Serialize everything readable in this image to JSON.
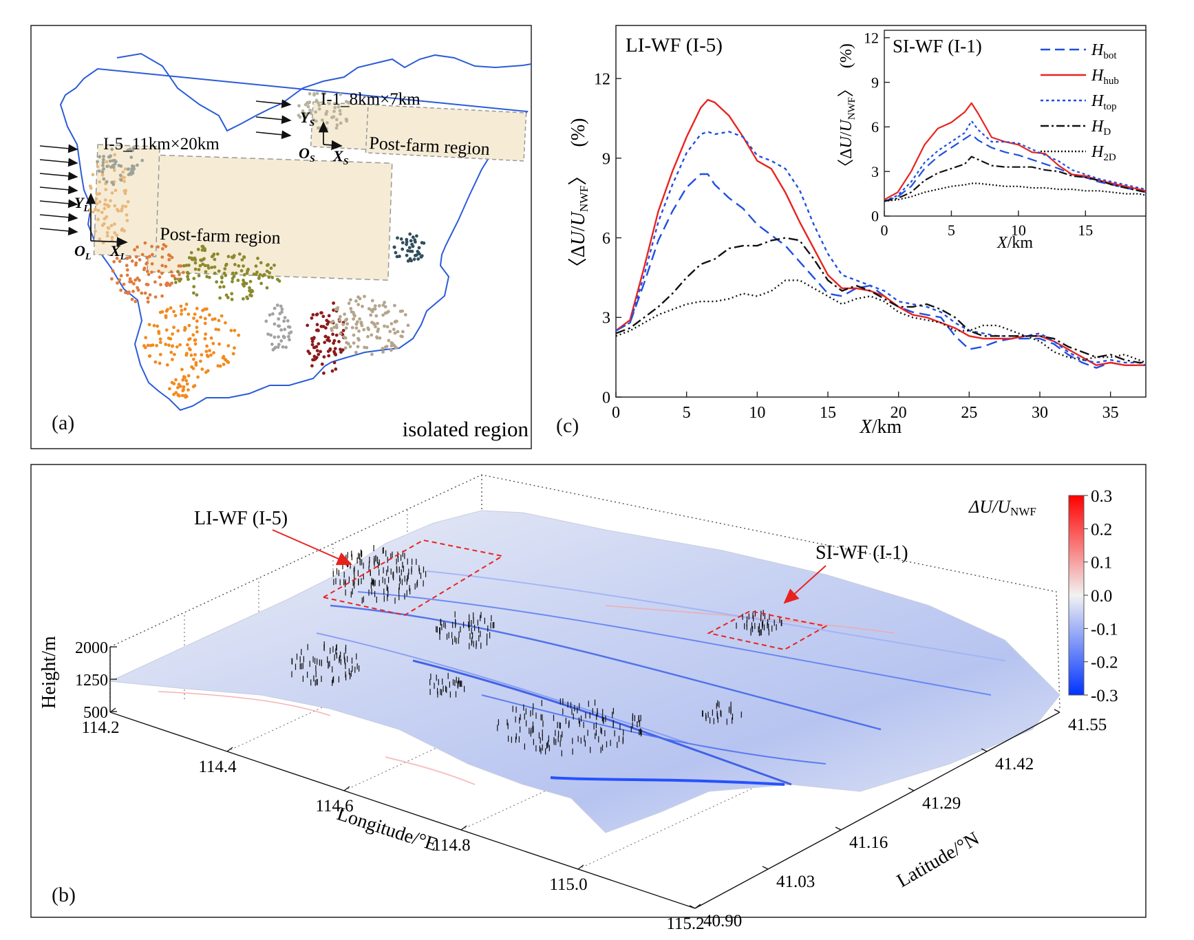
{
  "panel_a": {
    "label": "(a)",
    "corner_text": "isolated region",
    "small_box_title": "I-1_8km×7km",
    "large_box_title": "I-5_11km×20km",
    "post_farm_small": "Post-farm region",
    "post_farm_large": "Post-farm region",
    "axis_s": {
      "o": "O",
      "o_sub": "S",
      "x": "X",
      "x_sub": "S",
      "y": "Y",
      "y_sub": "S"
    },
    "axis_l": {
      "o": "O",
      "o_sub": "L",
      "x": "X",
      "x_sub": "L",
      "y": "Y",
      "y_sub": "L"
    },
    "colors": {
      "border": "#2a5bd7",
      "box_fill": "#f6ecd6",
      "box_stroke": "#999999",
      "arrow": "#111111"
    },
    "clusters": [
      {
        "color": "#b8b29c"
      },
      {
        "color": "#e9b87a"
      },
      {
        "color": "#9da39a"
      },
      {
        "color": "#e07b3a"
      },
      {
        "color": "#f28a1e"
      },
      {
        "color": "#8a8a2c"
      },
      {
        "color": "#a2a2a2"
      },
      {
        "color": "#8c1b1b"
      },
      {
        "color": "#b4a58c"
      },
      {
        "color": "#2f4e5c"
      }
    ]
  },
  "panel_b": {
    "label": "(b)",
    "colorbar_title": "ΔU/U",
    "colorbar_title_sub": "NWF",
    "colorbar_ticks": [
      "0.3",
      "0.2",
      "0.1",
      "0.0",
      "-0.1",
      "-0.2",
      "-0.3"
    ],
    "colorbar_colors": {
      "max": "#ff0000",
      "mid": "#f2f2f2",
      "min": "#0033ff"
    },
    "ann_li": "LI-WF (I-5)",
    "ann_si": "SI-WF (I-1)",
    "height_label": "Height/m",
    "height_ticks": [
      "2000",
      "1250",
      "500"
    ],
    "lon_label": "Longitude/°E",
    "lon_ticks": [
      "114.2",
      "114.4",
      "114.6",
      "114.8",
      "115.0",
      "115.2"
    ],
    "lat_label": "Latitude/°N",
    "lat_ticks": [
      "40.90",
      "41.03",
      "41.16",
      "41.29",
      "41.42",
      "41.55"
    ]
  },
  "chart_data": [
    {
      "type": "line",
      "label": "(c)",
      "title": "LI-WF (I-5)",
      "xlabel": "X",
      "xlabel_unit": "/km",
      "ylabel_open": "〈Δ",
      "ylabel_u": "U",
      "ylabel_slash": "/",
      "ylabel_u2": "U",
      "ylabel_sub": "NWF",
      "ylabel_close": "〉",
      "ylabel_pct": "(%)",
      "xlim": [
        0,
        37.5
      ],
      "ylim": [
        0,
        14
      ],
      "xticks": [
        0,
        5,
        10,
        15,
        20,
        25,
        30,
        35
      ],
      "yticks": [
        0,
        3,
        6,
        9,
        12
      ],
      "x": [
        0,
        1,
        2,
        3,
        4,
        5,
        6,
        6.5,
        7,
        8,
        9,
        10,
        11,
        12,
        13,
        14,
        15,
        16,
        17,
        18,
        19,
        20,
        21,
        22,
        23,
        24,
        25,
        26,
        27,
        28,
        29,
        30,
        31,
        32,
        33,
        34,
        35,
        36,
        37,
        37.5
      ],
      "series": [
        {
          "name": "H",
          "sub": "bot",
          "color": "#1f4fe0",
          "dash": "16,8",
          "values": [
            2.5,
            2.8,
            4.3,
            5.9,
            7.0,
            7.9,
            8.4,
            8.4,
            8.0,
            7.5,
            7.1,
            6.5,
            6.1,
            5.7,
            5.1,
            4.5,
            3.9,
            3.8,
            4.1,
            4.2,
            3.8,
            3.4,
            3.2,
            3.1,
            3.0,
            2.3,
            1.8,
            1.9,
            2.1,
            2.2,
            2.2,
            2.2,
            2.0,
            1.6,
            1.3,
            1.1,
            1.3,
            1.2,
            1.2,
            1.2
          ]
        },
        {
          "name": "H",
          "sub": "hub",
          "color": "#e8231f",
          "dash": "",
          "values": [
            2.5,
            2.9,
            4.9,
            7.0,
            8.5,
            9.8,
            10.9,
            11.2,
            11.1,
            10.6,
            9.8,
            8.9,
            8.6,
            7.7,
            6.6,
            5.6,
            4.6,
            4.1,
            4.1,
            4.0,
            3.8,
            3.4,
            3.1,
            3.0,
            2.8,
            2.6,
            2.3,
            2.2,
            2.2,
            2.2,
            2.3,
            2.3,
            2.1,
            1.8,
            1.5,
            1.2,
            1.3,
            1.2,
            1.2,
            1.2
          ]
        },
        {
          "name": "H",
          "sub": "top",
          "color": "#1f4fe0",
          "dash": "5,5",
          "values": [
            2.5,
            2.8,
            4.6,
            6.6,
            8.0,
            9.2,
            9.9,
            10.0,
            9.9,
            10.0,
            9.8,
            9.1,
            8.9,
            8.6,
            7.8,
            6.5,
            5.4,
            4.6,
            4.4,
            4.2,
            4.0,
            3.6,
            3.5,
            3.4,
            3.2,
            2.8,
            2.5,
            2.4,
            2.3,
            2.3,
            2.3,
            2.4,
            2.1,
            1.7,
            1.4,
            1.3,
            1.4,
            1.3,
            1.3,
            1.2
          ]
        },
        {
          "name": "H",
          "sub": "D",
          "color": "#111111",
          "dash": "14,5,3,5",
          "values": [
            2.4,
            2.6,
            3.0,
            3.4,
            3.9,
            4.5,
            5.0,
            5.1,
            5.2,
            5.6,
            5.7,
            5.7,
            5.9,
            6.0,
            5.9,
            5.2,
            4.4,
            4.0,
            4.2,
            4.0,
            3.7,
            3.4,
            3.4,
            3.5,
            3.3,
            3.0,
            2.5,
            2.3,
            2.3,
            2.3,
            2.3,
            2.3,
            2.2,
            1.9,
            1.7,
            1.5,
            1.6,
            1.4,
            1.3,
            1.3
          ]
        },
        {
          "name": "H",
          "sub": "2D",
          "color": "#111111",
          "dash": "2,4",
          "values": [
            2.3,
            2.5,
            2.8,
            3.1,
            3.3,
            3.5,
            3.6,
            3.6,
            3.6,
            3.7,
            3.9,
            3.8,
            4.0,
            4.4,
            4.4,
            4.1,
            3.8,
            3.5,
            3.7,
            3.8,
            3.6,
            3.2,
            3.0,
            2.9,
            2.8,
            2.5,
            2.5,
            2.7,
            2.7,
            2.5,
            2.3,
            2.1,
            1.7,
            1.5,
            1.4,
            1.5,
            1.5,
            1.6,
            1.4,
            1.3
          ]
        }
      ]
    },
    {
      "type": "line",
      "title": "SI-WF (I-1)",
      "inset": true,
      "xlabel": "X",
      "xlabel_unit": "/km",
      "ylabel_open": "〈Δ",
      "ylabel_u": "U",
      "ylabel_slash": "/",
      "ylabel_u2": "U",
      "ylabel_sub": "NWF",
      "ylabel_close": "〉",
      "ylabel_pct": "(%)",
      "xlim": [
        0,
        19.5
      ],
      "ylim": [
        0,
        12.5
      ],
      "xticks": [
        0,
        5,
        10,
        15
      ],
      "yticks": [
        0,
        3,
        6,
        9,
        12
      ],
      "x": [
        0,
        1,
        2,
        3,
        4,
        5,
        6,
        6.5,
        7,
        8,
        9,
        10,
        11,
        12,
        13,
        14,
        15,
        16,
        17,
        18,
        19,
        19.5
      ],
      "series": [
        {
          "name": "H",
          "sub": "bot",
          "color": "#1f4fe0",
          "dash": "14,7",
          "values": [
            1.0,
            1.3,
            2.0,
            3.2,
            4.0,
            4.6,
            5.2,
            5.5,
            5.1,
            4.6,
            4.3,
            4.1,
            3.8,
            3.5,
            3.2,
            2.8,
            2.6,
            2.3,
            2.1,
            1.9,
            1.7,
            1.6
          ]
        },
        {
          "name": "H",
          "sub": "hub",
          "color": "#e8231f",
          "dash": "",
          "values": [
            1.1,
            1.6,
            3.0,
            4.8,
            5.9,
            6.3,
            7.0,
            7.6,
            6.9,
            5.3,
            5.0,
            4.8,
            4.3,
            4.2,
            3.4,
            2.8,
            2.7,
            2.4,
            2.2,
            2.0,
            1.8,
            1.7
          ]
        },
        {
          "name": "H",
          "sub": "top",
          "color": "#1f4fe0",
          "dash": "4,4",
          "values": [
            1.0,
            1.4,
            2.3,
            3.6,
            4.4,
            5.0,
            5.6,
            6.4,
            5.8,
            5.0,
            5.0,
            4.9,
            4.5,
            4.1,
            3.7,
            3.1,
            2.8,
            2.5,
            2.3,
            2.1,
            1.9,
            1.8
          ]
        },
        {
          "name": "H",
          "sub": "D",
          "color": "#111111",
          "dash": "12,4,3,4",
          "values": [
            1.0,
            1.2,
            1.6,
            2.4,
            2.9,
            3.2,
            3.5,
            4.0,
            3.8,
            3.4,
            3.3,
            3.3,
            3.3,
            3.1,
            3.0,
            2.7,
            2.6,
            2.4,
            2.1,
            1.9,
            1.7,
            1.6
          ]
        },
        {
          "name": "H",
          "sub": "2D",
          "color": "#111111",
          "dash": "2,3",
          "values": [
            1.0,
            1.1,
            1.3,
            1.6,
            1.8,
            2.0,
            2.1,
            2.2,
            2.2,
            2.1,
            2.0,
            2.0,
            1.9,
            1.9,
            1.8,
            1.8,
            1.7,
            1.7,
            1.6,
            1.5,
            1.5,
            1.4
          ]
        }
      ]
    }
  ]
}
